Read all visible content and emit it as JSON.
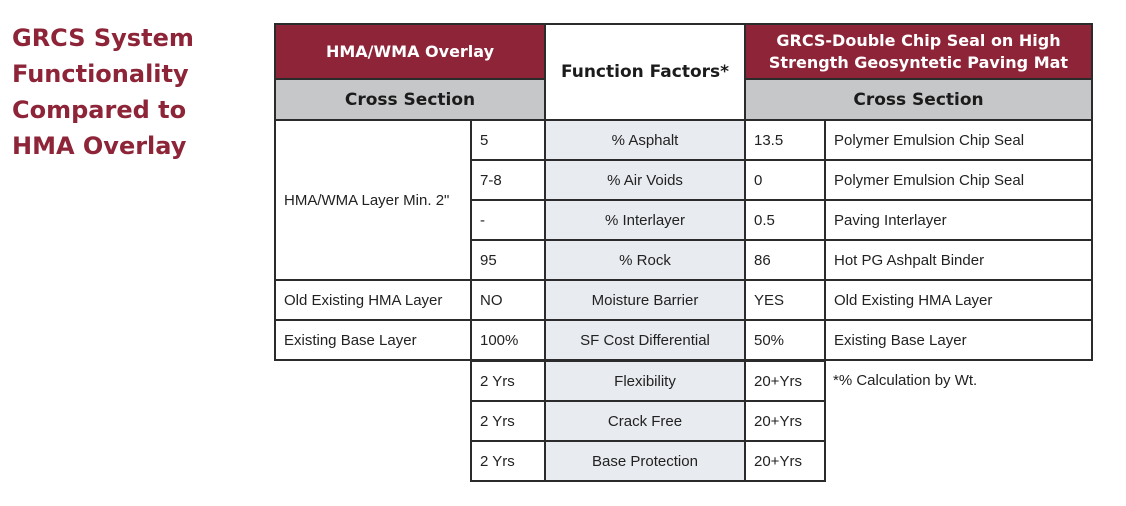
{
  "title_lines": [
    "GRCS System",
    "Functionality",
    "Compared to",
    "HMA Overlay"
  ],
  "headers": {
    "left_title": "HMA/WMA Overlay",
    "left_sub": "Cross Section",
    "middle": "Function Factors*",
    "right_title": "GRCS-Double Chip Seal on High Strength Geosyntetic Paving Mat",
    "right_sub": "Cross Section"
  },
  "left_layers": [
    "HMA/WMA Layer Min. 2\"",
    "Old Existing HMA Layer",
    "Existing Base Layer"
  ],
  "rows": [
    {
      "hma": "5",
      "factor": "% Asphalt",
      "grcs": "13.5",
      "desc": "Polymer Emulsion Chip Seal"
    },
    {
      "hma": "7-8",
      "factor": "% Air Voids",
      "grcs": "0",
      "desc": "Polymer Emulsion Chip Seal"
    },
    {
      "hma": "-",
      "factor": "% Interlayer",
      "grcs": "0.5",
      "desc": "Paving Interlayer"
    },
    {
      "hma": "95",
      "factor": "% Rock",
      "grcs": "86",
      "desc": "Hot PG Ashpalt Binder"
    },
    {
      "hma": "NO",
      "factor": "Moisture Barrier",
      "grcs": "YES",
      "desc": "Old Existing HMA Layer"
    },
    {
      "hma": "100%",
      "factor": "SF Cost Differential",
      "grcs": "50%",
      "desc": "Existing Base Layer"
    },
    {
      "hma": "2 Yrs",
      "factor": "Flexibility",
      "grcs": "20+Yrs",
      "desc": ""
    },
    {
      "hma": "2 Yrs",
      "factor": "Crack Free",
      "grcs": "20+Yrs",
      "desc": ""
    },
    {
      "hma": "2 Yrs",
      "factor": "Base Protection",
      "grcs": "20+Yrs",
      "desc": ""
    }
  ],
  "footnote": "*% Calculation by Wt.",
  "colors": {
    "brand_red": "#8d2437",
    "header_grey": "#c6c7c9",
    "factor_bg": "#e8ebef"
  }
}
